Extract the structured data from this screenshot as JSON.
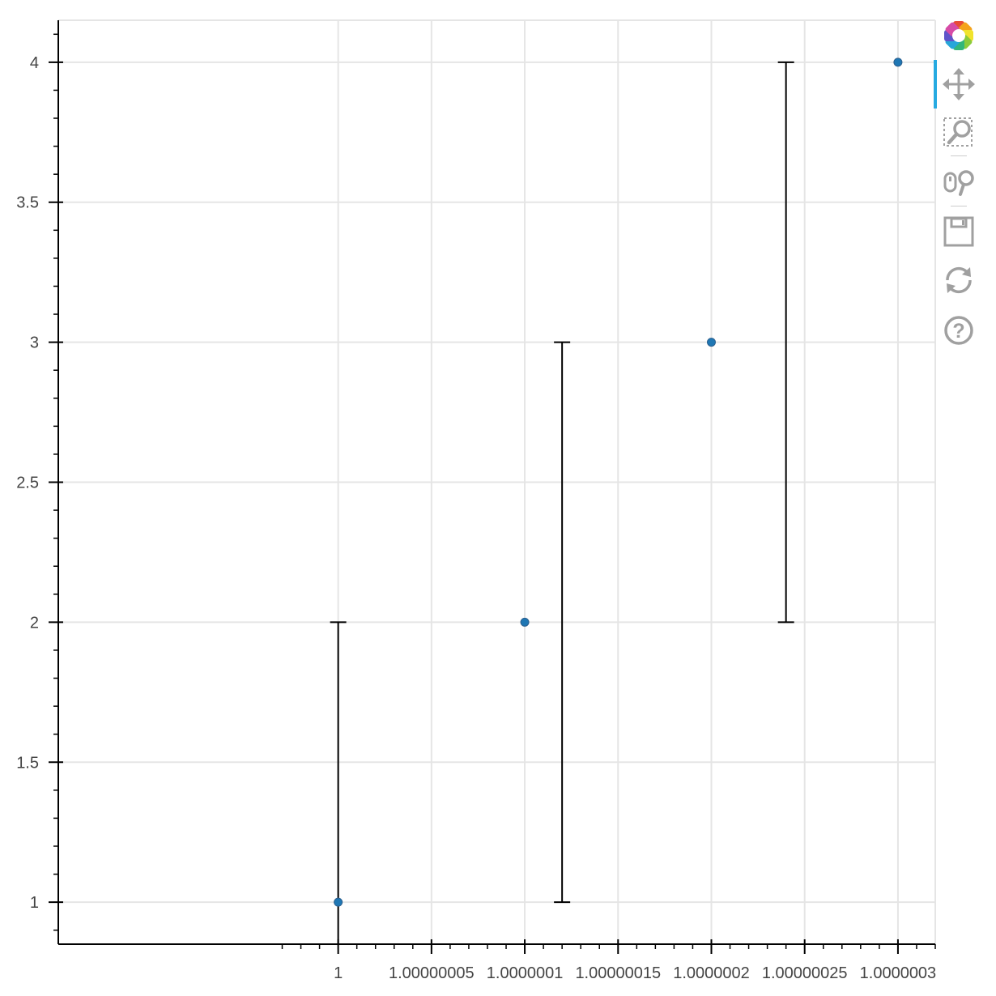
{
  "chart_data": {
    "type": "scatter",
    "title": "",
    "xlabel": "",
    "ylabel": "",
    "points": {
      "x": [
        1,
        1.0000001,
        1.0000002,
        1.0000003
      ],
      "y": [
        1,
        2,
        3,
        4
      ],
      "color": "#1f77b4"
    },
    "error_bars": [
      {
        "x": 1,
        "lower": 0,
        "upper": 2
      },
      {
        "x": 1.00000012,
        "lower": 1,
        "upper": 3
      },
      {
        "x": 1.00000024,
        "lower": 2,
        "upper": 4
      }
    ],
    "xlim": [
      0.99999985,
      1.00000032
    ],
    "ylim": [
      0.85,
      4.15
    ],
    "x_ticks": [
      1,
      1.00000005,
      1.0000001,
      1.00000015,
      1.0000002,
      1.00000025,
      1.0000003
    ],
    "x_tick_labels": [
      "1",
      "1.00000005",
      "1.0000001",
      "1.00000015",
      "1.0000002",
      "1.00000025",
      "1.0000003"
    ],
    "y_ticks": [
      1,
      1.5,
      2,
      2.5,
      3,
      3.5,
      4
    ],
    "y_tick_labels": [
      "1",
      "1.5",
      "2",
      "2.5",
      "3",
      "3.5",
      "4"
    ],
    "grid": true,
    "legend": "none"
  },
  "toolbar": {
    "tools": [
      {
        "name": "bokeh-logo-icon",
        "active": false
      },
      {
        "name": "pan-icon",
        "active": true
      },
      {
        "name": "box-zoom-icon",
        "active": false
      },
      {
        "name": "wheel-zoom-icon",
        "active": false
      },
      {
        "name": "save-icon",
        "active": false
      },
      {
        "name": "reset-icon",
        "active": false
      },
      {
        "name": "help-icon",
        "active": false
      }
    ],
    "active_color": "#26aae1",
    "icon_color": "#a0a0a0"
  }
}
